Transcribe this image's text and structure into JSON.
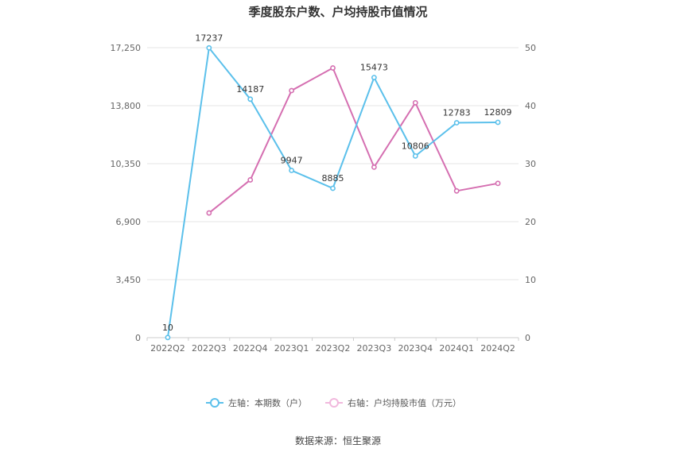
{
  "chart_data": {
    "type": "line",
    "title": "季度股东户数、户均持股市值情况",
    "categories": [
      "2022Q2",
      "2022Q3",
      "2022Q4",
      "2023Q1",
      "2023Q2",
      "2023Q3",
      "2023Q4",
      "2024Q1",
      "2024Q2"
    ],
    "left_axis": {
      "min": 0,
      "max": 17250,
      "ticks": [
        "0",
        "3,450",
        "6,900",
        "10,350",
        "13,800",
        "17,250"
      ]
    },
    "right_axis": {
      "min": 0,
      "max": 50,
      "ticks": [
        "0",
        "10",
        "20",
        "30",
        "40",
        "50"
      ]
    },
    "series": [
      {
        "name": "左轴：本期数（户）",
        "axis": "left",
        "color": "#5bc0eb",
        "values": [
          10,
          17237,
          14187,
          9947,
          8885,
          15473,
          10806,
          12783,
          12809
        ],
        "labels": [
          "10",
          "17237",
          "14187",
          "9947",
          "8885",
          "15473",
          "10806",
          "12783",
          "12809"
        ]
      },
      {
        "name": "右轴：户均持股市值（万元）",
        "axis": "right",
        "color": "#d56fb1",
        "values": [
          null,
          21.5,
          27.2,
          42.6,
          46.5,
          29.4,
          40.5,
          25.3,
          26.6
        ]
      }
    ],
    "legend_position": "bottom-center",
    "grid": true,
    "source": "数据来源：恒生聚源"
  }
}
